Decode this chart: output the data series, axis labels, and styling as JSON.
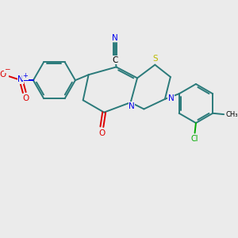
{
  "background_color": "#ebebeb",
  "bond_color": "#2a7a7a",
  "bond_lw": 1.4,
  "N_color": "#0000ee",
  "O_color": "#dd0000",
  "S_color": "#bbbb00",
  "Cl_color": "#00aa00",
  "C_color": "#000000",
  "fs": 7.5,
  "fs_small": 6.0,
  "xlim": [
    0,
    10
  ],
  "ylim": [
    0,
    10
  ]
}
